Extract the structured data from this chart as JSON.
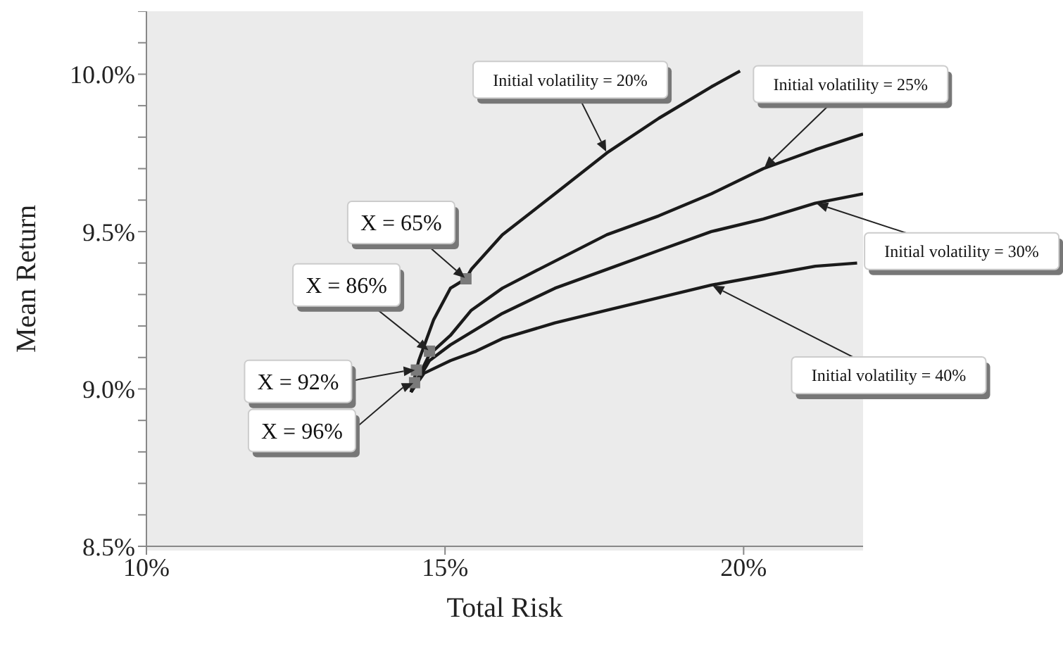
{
  "chart_data": {
    "type": "line",
    "xlabel": "Total Risk",
    "ylabel": "Mean Return",
    "xlim": [
      10,
      22
    ],
    "ylim": [
      8.5,
      10.2
    ],
    "xticks": [
      {
        "value": 10,
        "label": "10%"
      },
      {
        "value": 15,
        "label": "15%"
      },
      {
        "value": 20,
        "label": "20%"
      }
    ],
    "yticks": [
      {
        "value": 8.5,
        "label": "8.5%"
      },
      {
        "value": 8.6,
        "label": null
      },
      {
        "value": 8.7,
        "label": null
      },
      {
        "value": 8.8,
        "label": null
      },
      {
        "value": 8.9,
        "label": null
      },
      {
        "value": 9.0,
        "label": "9.0%"
      },
      {
        "value": 9.1,
        "label": null
      },
      {
        "value": 9.2,
        "label": null
      },
      {
        "value": 9.3,
        "label": null
      },
      {
        "value": 9.4,
        "label": null
      },
      {
        "value": 9.5,
        "label": "9.5%"
      },
      {
        "value": 9.6,
        "label": null
      },
      {
        "value": 9.7,
        "label": null
      },
      {
        "value": 9.8,
        "label": null
      },
      {
        "value": 9.9,
        "label": null
      },
      {
        "value": 10.0,
        "label": "10.0%"
      },
      {
        "value": 10.1,
        "label": null
      },
      {
        "value": 10.2,
        "label": null
      }
    ],
    "grid": false,
    "legend": false,
    "line_style": "solid",
    "series": [
      {
        "name": "Initial volatility = 20%",
        "color": "#1a1a1a",
        "marker": "none",
        "x": [
          14.43,
          14.56,
          14.81,
          15.09,
          15.35,
          15.44,
          15.96,
          16.84,
          17.71,
          18.58,
          19.46,
          19.94
        ],
        "values": [
          8.99,
          9.09,
          9.22,
          9.32,
          9.35,
          9.38,
          9.49,
          9.62,
          9.75,
          9.86,
          9.96,
          10.01
        ]
      },
      {
        "name": "Initial volatility = 25%",
        "color": "#1a1a1a",
        "marker": "none",
        "x": [
          14.43,
          14.74,
          15.09,
          15.44,
          15.96,
          16.57,
          17.71,
          18.58,
          19.46,
          20.33,
          21.2,
          22.0
        ],
        "values": [
          8.99,
          9.11,
          9.17,
          9.25,
          9.32,
          9.38,
          9.49,
          9.55,
          9.62,
          9.7,
          9.76,
          9.81
        ]
      },
      {
        "name": "Initial volatility = 30%",
        "color": "#1a1a1a",
        "marker": "none",
        "x": [
          14.43,
          14.74,
          15.09,
          15.96,
          16.84,
          17.71,
          18.58,
          19.46,
          20.33,
          21.2,
          22.0
        ],
        "values": [
          8.99,
          9.09,
          9.14,
          9.24,
          9.32,
          9.38,
          9.44,
          9.5,
          9.54,
          9.59,
          9.62
        ]
      },
      {
        "name": "Initial volatility = 40%",
        "color": "#1a1a1a",
        "marker": "none",
        "x": [
          14.43,
          14.65,
          15.09,
          15.52,
          15.96,
          16.84,
          17.71,
          18.58,
          19.46,
          20.33,
          21.2,
          21.9
        ],
        "values": [
          8.99,
          9.05,
          9.09,
          9.12,
          9.16,
          9.21,
          9.25,
          9.29,
          9.33,
          9.36,
          9.39,
          9.4
        ]
      },
      {
        "type": "scatter",
        "color": "#7a7a7a",
        "marker": "square",
        "x": [
          14.49,
          14.52,
          14.74,
          15.35
        ],
        "values": [
          9.02,
          9.06,
          9.12,
          9.35
        ]
      }
    ],
    "annotations": [
      {
        "text": "X = 96%",
        "x": 14.49,
        "y": 9.02
      },
      {
        "text": "X = 92%",
        "x": 14.52,
        "y": 9.06
      },
      {
        "text": "X = 86%",
        "x": 14.74,
        "y": 9.12
      },
      {
        "text": "X = 65%",
        "x": 15.35,
        "y": 9.35
      }
    ]
  }
}
